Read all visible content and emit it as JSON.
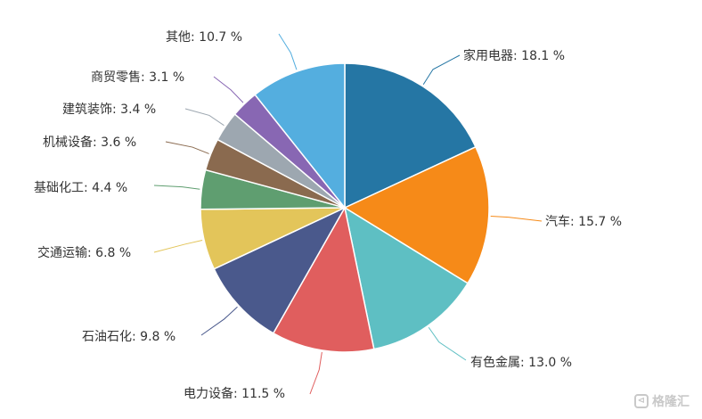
{
  "chart_data": {
    "type": "pie",
    "unit": "%",
    "slices": [
      {
        "label": "家用电器",
        "value": 18.1,
        "color": "#2576a4"
      },
      {
        "label": "汽车",
        "value": 15.7,
        "color": "#f68a18"
      },
      {
        "label": "有色金属",
        "value": 13.0,
        "color": "#5ebfc3"
      },
      {
        "label": "电力设备",
        "value": 11.5,
        "color": "#e05e5e"
      },
      {
        "label": "石油石化",
        "value": 9.8,
        "color": "#4a598c"
      },
      {
        "label": "交通运输",
        "value": 6.8,
        "color": "#e3c55a"
      },
      {
        "label": "基础化工",
        "value": 4.4,
        "color": "#5f9e70"
      },
      {
        "label": "机械设备",
        "value": 3.6,
        "color": "#8a6a4f"
      },
      {
        "label": "建筑装饰",
        "value": 3.4,
        "color": "#9da7b0"
      },
      {
        "label": "商贸零售",
        "value": 3.1,
        "color": "#8867b3"
      },
      {
        "label": "其他",
        "value": 10.7,
        "color": "#54aedf"
      }
    ]
  },
  "watermark": {
    "text": "格隆汇"
  }
}
